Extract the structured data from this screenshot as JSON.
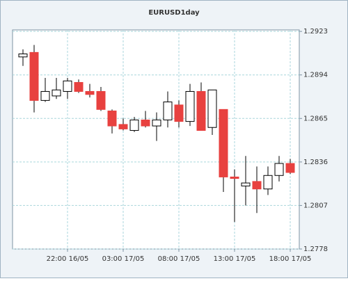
{
  "chart_data": {
    "type": "candlestick",
    "title": "EURUSD1day",
    "categories": [
      null,
      null,
      null,
      null,
      "22:00 16/05",
      null,
      null,
      null,
      null,
      "03:00 17/05",
      null,
      null,
      null,
      null,
      "08:00 17/05",
      null,
      null,
      null,
      null,
      "13:00 17/05",
      null,
      null,
      null,
      null,
      "18:00 17/05"
    ],
    "open": [
      1.2906,
      1.2909,
      1.2877,
      1.288,
      1.2883,
      1.2889,
      1.2883,
      1.2883,
      1.287,
      1.2861,
      1.2857,
      1.2864,
      1.286,
      1.2864,
      1.2874,
      1.2863,
      1.2883,
      1.2859,
      1.2871,
      1.2826,
      1.282,
      1.2823,
      1.2818,
      1.2827,
      1.2835
    ],
    "high": [
      1.2911,
      1.2914,
      1.2892,
      1.2892,
      1.2892,
      1.2891,
      1.2888,
      1.2886,
      1.2871,
      1.2865,
      1.2866,
      1.287,
      1.2869,
      1.2883,
      1.2877,
      1.2888,
      1.2889,
      1.2884,
      1.2871,
      1.2831,
      1.284,
      1.2833,
      1.2833,
      1.284,
      1.2838
    ],
    "low": [
      1.29,
      1.2869,
      1.2876,
      1.2878,
      1.2878,
      1.2882,
      1.2879,
      1.287,
      1.2855,
      1.2857,
      1.2856,
      1.2859,
      1.285,
      1.2859,
      1.2859,
      1.286,
      1.2857,
      1.2854,
      1.2816,
      1.2796,
      1.2807,
      1.2802,
      1.2814,
      1.2823,
      1.2828
    ],
    "close": [
      1.2908,
      1.2877,
      1.2883,
      1.2884,
      1.289,
      1.2883,
      1.2881,
      1.2871,
      1.286,
      1.2858,
      1.2864,
      1.286,
      1.2864,
      1.2876,
      1.2863,
      1.2883,
      1.2857,
      1.2884,
      1.2826,
      1.2825,
      1.2822,
      1.2818,
      1.2827,
      1.2835,
      1.2829
    ],
    "up_color": "#ffffff",
    "down_color": "#e8413f",
    "ylim": [
      1.2778,
      1.2924
    ],
    "yticks": [
      1.2778,
      1.2807,
      1.2836,
      1.2865,
      1.2894,
      1.2923
    ],
    "grid": true
  }
}
